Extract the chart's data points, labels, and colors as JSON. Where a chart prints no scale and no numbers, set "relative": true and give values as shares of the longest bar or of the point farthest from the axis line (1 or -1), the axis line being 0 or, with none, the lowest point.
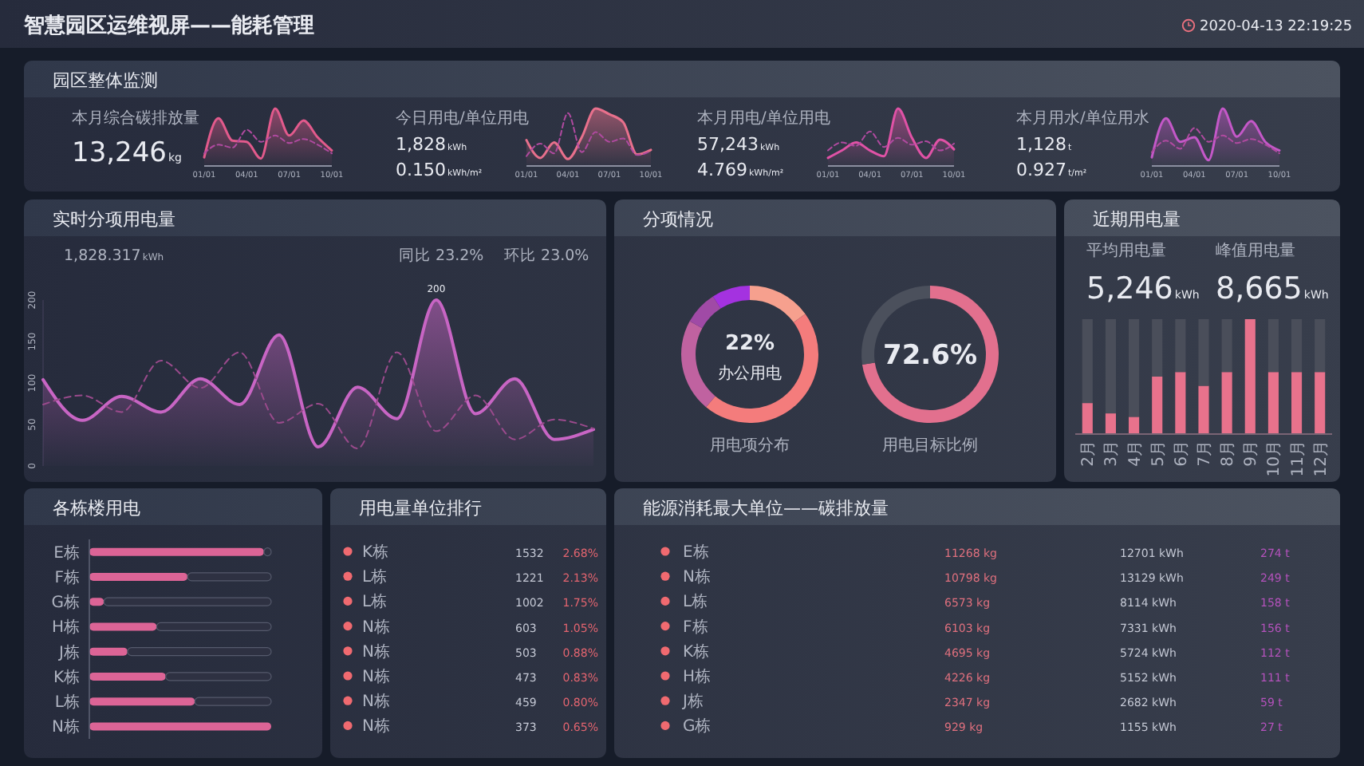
{
  "chart_data": [
    {
      "type": "other",
      "title": "智慧园区运维视屏——能耗管理",
      "subtitle": "园区整体监测",
      "annotations": [
        "2020-04-13 22:19:25"
      ]
    },
    {
      "type": "line",
      "relative": true,
      "title": "本月综合碳排放量",
      "annotations": [
        "13,246kg"
      ],
      "categories": [
        "01/01",
        null,
        null,
        "04/01",
        null,
        null,
        "07/01",
        null,
        null,
        "10/01"
      ],
      "series": [
        {
          "type": "area",
          "color": "#e25a8c",
          "values": [
            0.15,
            0.83,
            0.44,
            0.42,
            0.13,
            1,
            0.53,
            0.79,
            0.5,
            0.27
          ]
        },
        {
          "color": "#b04aa0",
          "line_style": "dashed",
          "values": [
            0.22,
            0.37,
            0.32,
            0.63,
            0.42,
            0.53,
            0.4,
            0.47,
            0.37,
            0.22
          ]
        }
      ]
    },
    {
      "type": "line",
      "relative": true,
      "title": "今日用电/单位用电",
      "annotations": [
        "1,828kWh",
        "0.150kWh/m²"
      ],
      "categories": [
        "01/01",
        null,
        null,
        "04/01",
        null,
        null,
        "07/01",
        null,
        null,
        "10/01"
      ],
      "series": [
        {
          "type": "area",
          "color": "#e8708c",
          "values": [
            0.45,
            0.14,
            0.41,
            0.12,
            0.5,
            1,
            0.9,
            0.76,
            0.2,
            0.28
          ]
        },
        {
          "color": "#b04aa0",
          "line_style": "dashed",
          "values": [
            0.17,
            0.39,
            0.22,
            0.92,
            0.24,
            0.59,
            0.42,
            0.48,
            0.19,
            0.26
          ]
        }
      ]
    },
    {
      "type": "line",
      "relative": true,
      "title": "本月用电/单位用电",
      "annotations": [
        "57,243kWh",
        "4.769kWh/m²"
      ],
      "categories": [
        "01/01",
        null,
        null,
        "04/01",
        null,
        null,
        "07/01",
        null,
        null,
        "10/01"
      ],
      "series": [
        {
          "type": "area",
          "color": "#e052a6",
          "values": [
            0.14,
            0.27,
            0.41,
            0.27,
            0.17,
            1,
            0.49,
            0.14,
            0.46,
            0.29
          ]
        },
        {
          "color": "#b04aa0",
          "line_style": "dashed",
          "values": [
            0.27,
            0.41,
            0.35,
            0.6,
            0.33,
            0.49,
            0.37,
            0.43,
            0.27,
            0.39
          ]
        }
      ]
    },
    {
      "type": "line",
      "relative": true,
      "title": "本月用水/单位用水",
      "annotations": [
        "1,128t",
        "0.927t/m²"
      ],
      "categories": [
        "01/01",
        null,
        null,
        "04/01",
        null,
        null,
        "07/01",
        null,
        null,
        "10/01"
      ],
      "series": [
        {
          "type": "area",
          "color": "#c458c8",
          "values": [
            0.15,
            0.83,
            0.42,
            0.5,
            0.1,
            1,
            0.51,
            0.78,
            0.42,
            0.27
          ]
        },
        {
          "color": "#b04aa0",
          "line_style": "dashed",
          "values": [
            0.24,
            0.44,
            0.3,
            0.66,
            0.42,
            0.53,
            0.4,
            0.47,
            0.37,
            0.22
          ]
        }
      ]
    },
    {
      "type": "line",
      "title": "实时分项用电量",
      "annotations": [
        "1,828.317kWh",
        "同比 23.2%",
        "环比 23.0%"
      ],
      "categories": [
        null,
        null,
        null,
        null,
        null,
        null,
        null,
        null,
        null,
        null,
        null,
        null,
        null,
        null,
        null
      ],
      "ylim": [
        0,
        200
      ],
      "yticks": [
        0,
        50,
        100,
        150,
        200
      ],
      "series": [
        {
          "type": "area",
          "color": "#c865c4",
          "values": [
            104,
            55,
            84,
            65,
            105,
            74,
            158,
            23,
            95,
            57,
            200,
            63,
            105,
            32,
            44
          ],
          "value_labels": [
            null,
            null,
            null,
            null,
            null,
            null,
            null,
            null,
            null,
            null,
            "200",
            null,
            null,
            null,
            null
          ]
        },
        {
          "color": "#9a4a8c",
          "line_style": "dashed",
          "values": [
            74,
            85,
            65,
            127,
            94,
            137,
            52,
            75,
            21,
            137,
            42,
            85,
            32,
            56,
            45
          ]
        }
      ]
    },
    {
      "type": "donut",
      "title": "分项情况",
      "xlabel": "用电项分布",
      "annotations": [
        "22%",
        "办公用电"
      ],
      "categories": [
        null,
        null,
        null,
        null,
        null
      ],
      "values": [
        15,
        46,
        22,
        8,
        9
      ],
      "colors": [
        "#f6a08e",
        "#f47c7c",
        "#c062a0",
        "#a04aa6",
        "#a432e0"
      ]
    },
    {
      "type": "donut",
      "xlabel": "用电目标比例",
      "categories": [
        null,
        null
      ],
      "values": [
        72.6,
        27.4
      ],
      "colors": [
        "#e2708e",
        "#4b505c"
      ],
      "value_labels": [
        "72.6%",
        null
      ]
    },
    {
      "type": "bar",
      "title": "近期用电量",
      "annotations": [
        "平均用电量",
        "5,246kWh",
        "峰值用电量",
        "8,665kWh"
      ],
      "relative": true,
      "stacked": true,
      "categories": [
        "2月",
        "3月",
        "4月",
        "5月",
        "6月",
        "7月",
        "8月",
        "9月",
        "10月",
        "11月",
        "12月"
      ],
      "series": [
        {
          "color": "#e8728c",
          "values": [
            0.27,
            0.18,
            0.15,
            0.5,
            0.54,
            0.42,
            0.54,
            1,
            0.54,
            0.54,
            0.54
          ]
        },
        {
          "color": "#4a4e5a",
          "values": [
            0.73,
            0.82,
            0.85,
            0.5,
            0.46,
            0.58,
            0.46,
            0,
            0.46,
            0.46,
            0.46
          ]
        }
      ]
    },
    {
      "type": "bar",
      "orientation": "horizontal",
      "title": "各栋楼用电",
      "relative": true,
      "stacked": true,
      "categories": [
        "E栋",
        "F栋",
        "G栋",
        "H栋",
        "J栋",
        "K栋",
        "L栋",
        "N栋"
      ],
      "series": [
        {
          "color": "#dc6496",
          "values": [
            0.96,
            0.54,
            0.08,
            0.37,
            0.21,
            0.42,
            0.58,
            1
          ]
        },
        {
          "color": "#2e3142",
          "values": [
            0.04,
            0.46,
            0.92,
            0.63,
            0.79,
            0.58,
            0.42,
            0
          ]
        }
      ]
    },
    {
      "type": "other",
      "title": "用电量单位排行",
      "categories": [
        "K栋",
        "L栋",
        "L栋",
        "N栋",
        "N栋",
        "N栋",
        "N栋",
        "N栋"
      ],
      "series": [
        {
          "values": [
            1532,
            1221,
            1002,
            603,
            503,
            473,
            459,
            373
          ],
          "value_labels": [
            "1532",
            "1221",
            "1002",
            "603",
            "503",
            "473",
            "459",
            "373"
          ]
        },
        {
          "values": [
            2.68,
            2.13,
            1.75,
            1.05,
            0.88,
            0.83,
            0.8,
            0.65
          ],
          "value_labels": [
            "2.68%",
            "2.13%",
            "1.75%",
            "1.05%",
            "0.88%",
            "0.83%",
            "0.80%",
            "0.65%"
          ]
        }
      ]
    },
    {
      "type": "other",
      "title": "能源消耗最大单位——碳排放量",
      "categories": [
        "E栋",
        "N栋",
        "L栋",
        "F栋",
        "K栋",
        "H栋",
        "J栋",
        "G栋"
      ],
      "series": [
        {
          "values": [
            11268,
            10798,
            6573,
            6103,
            4695,
            4226,
            2347,
            929
          ],
          "value_labels": [
            "11268 kg",
            "10798 kg",
            "6573 kg",
            "6103 kg",
            "4695 kg",
            "4226 kg",
            "2347 kg",
            "929 kg"
          ]
        },
        {
          "values": [
            12701,
            13129,
            8114,
            7331,
            5724,
            5152,
            2682,
            1155
          ],
          "value_labels": [
            "12701 kWh",
            "13129 kWh",
            "8114 kWh",
            "7331 kWh",
            "5724 kWh",
            "5152 kWh",
            "2682 kWh",
            "1155 kWh"
          ]
        },
        {
          "values": [
            274,
            249,
            158,
            156,
            112,
            111,
            59,
            27
          ],
          "value_labels": [
            "274 t",
            "249 t",
            "158 t",
            "156 t",
            "112 t",
            "111 t",
            "59 t",
            "27 t"
          ]
        }
      ]
    }
  ]
}
